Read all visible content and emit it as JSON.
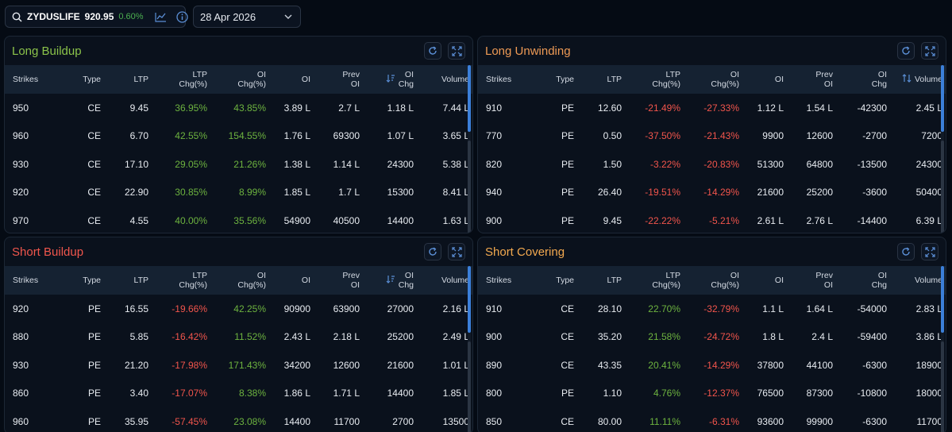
{
  "search": {
    "symbol": "ZYDUSLIFE",
    "price": "920.95",
    "change": "0.60%"
  },
  "date": {
    "value": "28 Apr 2026"
  },
  "headers": {
    "strikes": "Strikes",
    "type": "Type",
    "ltp": "LTP",
    "ltp_chg_1": "LTP",
    "ltp_chg_2": "Chg(%)",
    "oi_chg_pct_1": "OI",
    "oi_chg_pct_2": "Chg(%)",
    "oi": "OI",
    "prev_oi_1": "Prev",
    "prev_oi_2": "OI",
    "oi_chg_1": "OI",
    "oi_chg_2": "Chg",
    "volume": "Volume"
  },
  "panels": {
    "long_buildup": {
      "title": "Long Buildup",
      "rows": [
        {
          "strike": "950",
          "type": "CE",
          "ltp": "9.45",
          "ltp_chg": "36.95%",
          "oi_chg_pct": "43.85%",
          "oi": "3.89 L",
          "prev_oi": "2.7 L",
          "oi_chg": "1.18 L",
          "volume": "7.44 L"
        },
        {
          "strike": "960",
          "type": "CE",
          "ltp": "6.70",
          "ltp_chg": "42.55%",
          "oi_chg_pct": "154.55%",
          "oi": "1.76 L",
          "prev_oi": "69300",
          "oi_chg": "1.07 L",
          "volume": "3.65 L"
        },
        {
          "strike": "930",
          "type": "CE",
          "ltp": "17.10",
          "ltp_chg": "29.05%",
          "oi_chg_pct": "21.26%",
          "oi": "1.38 L",
          "prev_oi": "1.14 L",
          "oi_chg": "24300",
          "volume": "5.38 L"
        },
        {
          "strike": "920",
          "type": "CE",
          "ltp": "22.90",
          "ltp_chg": "30.85%",
          "oi_chg_pct": "8.99%",
          "oi": "1.85 L",
          "prev_oi": "1.7 L",
          "oi_chg": "15300",
          "volume": "8.41 L"
        },
        {
          "strike": "970",
          "type": "CE",
          "ltp": "4.55",
          "ltp_chg": "40.00%",
          "oi_chg_pct": "35.56%",
          "oi": "54900",
          "prev_oi": "40500",
          "oi_chg": "14400",
          "volume": "1.63 L"
        }
      ]
    },
    "long_unwinding": {
      "title": "Long Unwinding",
      "rows": [
        {
          "strike": "910",
          "type": "PE",
          "ltp": "12.60",
          "ltp_chg": "-21.49%",
          "oi_chg_pct": "-27.33%",
          "oi": "1.12 L",
          "prev_oi": "1.54 L",
          "oi_chg": "-42300",
          "volume": "2.45 L"
        },
        {
          "strike": "770",
          "type": "PE",
          "ltp": "0.50",
          "ltp_chg": "-37.50%",
          "oi_chg_pct": "-21.43%",
          "oi": "9900",
          "prev_oi": "12600",
          "oi_chg": "-2700",
          "volume": "7200"
        },
        {
          "strike": "820",
          "type": "PE",
          "ltp": "1.50",
          "ltp_chg": "-3.22%",
          "oi_chg_pct": "-20.83%",
          "oi": "51300",
          "prev_oi": "64800",
          "oi_chg": "-13500",
          "volume": "24300"
        },
        {
          "strike": "940",
          "type": "PE",
          "ltp": "26.40",
          "ltp_chg": "-19.51%",
          "oi_chg_pct": "-14.29%",
          "oi": "21600",
          "prev_oi": "25200",
          "oi_chg": "-3600",
          "volume": "50400"
        },
        {
          "strike": "900",
          "type": "PE",
          "ltp": "9.45",
          "ltp_chg": "-22.22%",
          "oi_chg_pct": "-5.21%",
          "oi": "2.61 L",
          "prev_oi": "2.76 L",
          "oi_chg": "-14400",
          "volume": "6.39 L"
        }
      ]
    },
    "short_buildup": {
      "title": "Short Buildup",
      "rows": [
        {
          "strike": "920",
          "type": "PE",
          "ltp": "16.55",
          "ltp_chg": "-19.66%",
          "oi_chg_pct": "42.25%",
          "oi": "90900",
          "prev_oi": "63900",
          "oi_chg": "27000",
          "volume": "2.16 L"
        },
        {
          "strike": "880",
          "type": "PE",
          "ltp": "5.85",
          "ltp_chg": "-16.42%",
          "oi_chg_pct": "11.52%",
          "oi": "2.43 L",
          "prev_oi": "2.18 L",
          "oi_chg": "25200",
          "volume": "2.49 L"
        },
        {
          "strike": "930",
          "type": "PE",
          "ltp": "21.20",
          "ltp_chg": "-17.98%",
          "oi_chg_pct": "171.43%",
          "oi": "34200",
          "prev_oi": "12600",
          "oi_chg": "21600",
          "volume": "1.01 L"
        },
        {
          "strike": "860",
          "type": "PE",
          "ltp": "3.40",
          "ltp_chg": "-17.07%",
          "oi_chg_pct": "8.38%",
          "oi": "1.86 L",
          "prev_oi": "1.71 L",
          "oi_chg": "14400",
          "volume": "1.85 L"
        },
        {
          "strike": "960",
          "type": "PE",
          "ltp": "35.95",
          "ltp_chg": "-57.45%",
          "oi_chg_pct": "23.08%",
          "oi": "14400",
          "prev_oi": "11700",
          "oi_chg": "2700",
          "volume": "13500"
        }
      ]
    },
    "short_covering": {
      "title": "Short Covering",
      "rows": [
        {
          "strike": "910",
          "type": "CE",
          "ltp": "28.10",
          "ltp_chg": "22.70%",
          "oi_chg_pct": "-32.79%",
          "oi": "1.1 L",
          "prev_oi": "1.64 L",
          "oi_chg": "-54000",
          "volume": "2.83 L"
        },
        {
          "strike": "900",
          "type": "CE",
          "ltp": "35.20",
          "ltp_chg": "21.58%",
          "oi_chg_pct": "-24.72%",
          "oi": "1.8 L",
          "prev_oi": "2.4 L",
          "oi_chg": "-59400",
          "volume": "3.86 L"
        },
        {
          "strike": "890",
          "type": "CE",
          "ltp": "43.35",
          "ltp_chg": "20.41%",
          "oi_chg_pct": "-14.29%",
          "oi": "37800",
          "prev_oi": "44100",
          "oi_chg": "-6300",
          "volume": "18900"
        },
        {
          "strike": "800",
          "type": "PE",
          "ltp": "1.10",
          "ltp_chg": "4.76%",
          "oi_chg_pct": "-12.37%",
          "oi": "76500",
          "prev_oi": "87300",
          "oi_chg": "-10800",
          "volume": "18000"
        },
        {
          "strike": "850",
          "type": "CE",
          "ltp": "80.00",
          "ltp_chg": "11.11%",
          "oi_chg_pct": "-6.31%",
          "oi": "93600",
          "prev_oi": "99900",
          "oi_chg": "-6300",
          "volume": "11700"
        }
      ]
    }
  },
  "colors": {
    "positive": "#6db33f",
    "negative": "#f2554c",
    "accent": "#3b7fd9"
  },
  "icons": [
    "search-icon",
    "chart-icon",
    "info-icon",
    "chevron-down-icon",
    "refresh-icon",
    "expand-icon",
    "sort-icon"
  ]
}
